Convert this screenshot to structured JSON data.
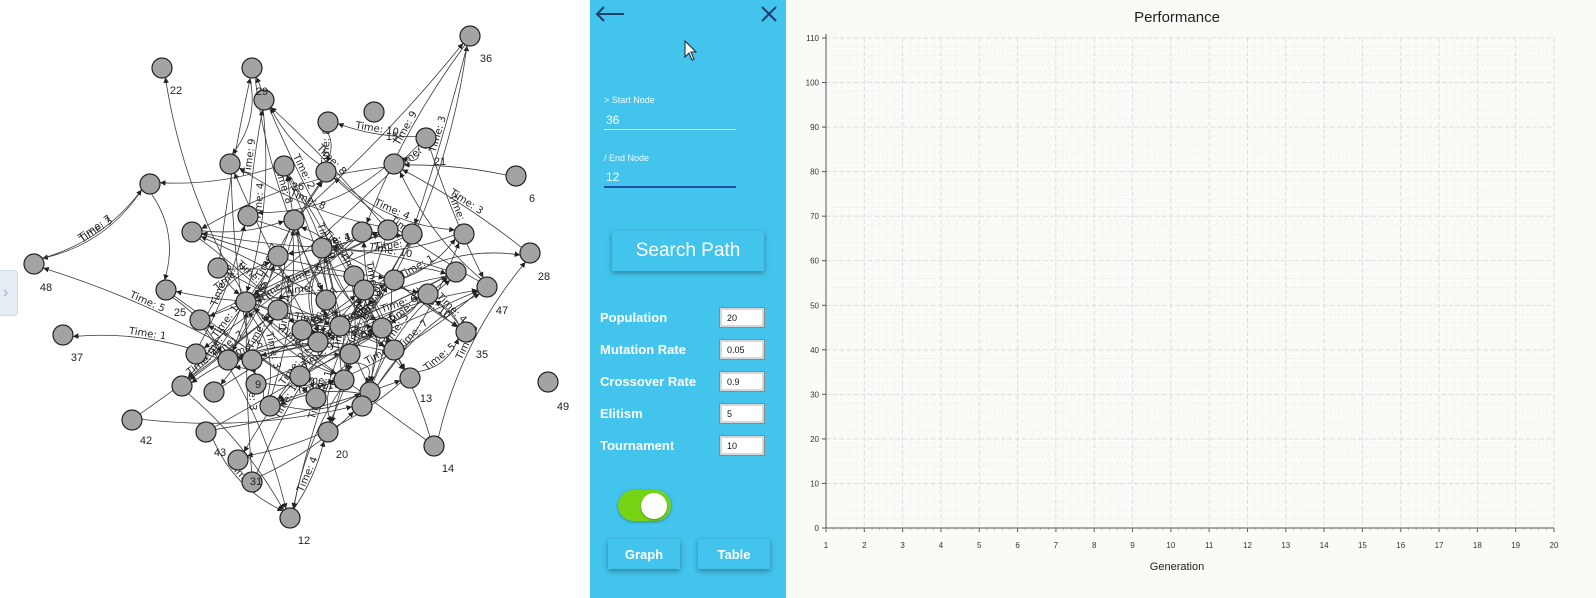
{
  "graph": {
    "nodes": [
      {
        "id": "36",
        "label": "36"
      },
      {
        "id": "22",
        "label": "22"
      },
      {
        "id": "29",
        "label": "29"
      },
      {
        "id": "15",
        "label": "15"
      },
      {
        "id": "21",
        "label": "21"
      },
      {
        "id": "6",
        "label": "6"
      },
      {
        "id": "48",
        "label": "48"
      },
      {
        "id": "28",
        "label": "28"
      },
      {
        "id": "25",
        "label": "25"
      },
      {
        "id": "47",
        "label": "47"
      },
      {
        "id": "37",
        "label": "37"
      },
      {
        "id": "35",
        "label": "35"
      },
      {
        "id": "49",
        "label": "49"
      },
      {
        "id": "42",
        "label": "42"
      },
      {
        "id": "43",
        "label": "43"
      },
      {
        "id": "20",
        "label": "20"
      },
      {
        "id": "14",
        "label": "14"
      },
      {
        "id": "31",
        "label": "31"
      },
      {
        "id": "12",
        "label": "12"
      },
      {
        "id": "26",
        "label": "26"
      },
      {
        "id": "13",
        "label": "13"
      },
      {
        "id": "9",
        "label": "9"
      }
    ],
    "edge_labels": [
      "Time: 3",
      "Time: 9",
      "Time: 10",
      "Time: 2",
      "Time: 4",
      "Time: 8",
      "Time: 6",
      "Time: 7",
      "Time: 1",
      "Time: 5"
    ]
  },
  "panel": {
    "start_label": "> Start Node",
    "start_value": "36",
    "end_label": "/ End Node",
    "end_value": "12",
    "search_label": "Search Path",
    "params": [
      {
        "label": "Population",
        "value": "20"
      },
      {
        "label": "Mutation Rate",
        "value": "0.05"
      },
      {
        "label": "Crossover Rate",
        "value": "0.9"
      },
      {
        "label": "Elitism",
        "value": "5"
      },
      {
        "label": "Tournament",
        "value": "10"
      }
    ],
    "toggle_on": true,
    "graph_button": "Graph",
    "table_button": "Table",
    "accent_color": "#43c4ec",
    "toggle_color": "#77d415"
  },
  "chart_data": {
    "type": "line",
    "title": "Performance",
    "xlabel": "Generation",
    "ylabel": "",
    "xlim": [
      1,
      20
    ],
    "ylim": [
      0,
      110
    ],
    "x_ticks": [
      "1",
      "2",
      "3",
      "4",
      "5",
      "6",
      "7",
      "8",
      "9",
      "10",
      "11",
      "12",
      "13",
      "14",
      "15",
      "16",
      "17",
      "18",
      "19",
      "20"
    ],
    "y_ticks": [
      "0",
      "10",
      "20",
      "30",
      "40",
      "50",
      "60",
      "70",
      "80",
      "90",
      "100",
      "110"
    ],
    "series": [],
    "grid": true
  }
}
